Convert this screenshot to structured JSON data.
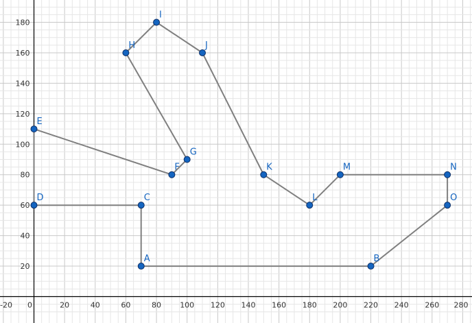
{
  "chart_data": {
    "type": "scatter",
    "xlim": [
      -20,
      285
    ],
    "ylim": [
      5,
      190
    ],
    "x_ticks": [
      -20,
      0,
      20,
      40,
      60,
      80,
      100,
      120,
      140,
      160,
      180,
      200,
      220,
      240,
      260,
      280
    ],
    "y_ticks": [
      20,
      40,
      60,
      80,
      100,
      120,
      140,
      160,
      180
    ],
    "grid": true,
    "line_color": "#7f7f7f",
    "point_color": "#1565c0",
    "points": [
      {
        "label": "A",
        "x": 70,
        "y": 20
      },
      {
        "label": "B",
        "x": 220,
        "y": 20
      },
      {
        "label": "C",
        "x": 70,
        "y": 60
      },
      {
        "label": "D",
        "x": 0,
        "y": 60
      },
      {
        "label": "E",
        "x": 0,
        "y": 110
      },
      {
        "label": "F",
        "x": 90,
        "y": 80
      },
      {
        "label": "G",
        "x": 100,
        "y": 90
      },
      {
        "label": "H",
        "x": 60,
        "y": 160
      },
      {
        "label": "I",
        "x": 80,
        "y": 180
      },
      {
        "label": "J",
        "x": 110,
        "y": 160
      },
      {
        "label": "K",
        "x": 150,
        "y": 80
      },
      {
        "label": "L",
        "x": 180,
        "y": 60
      },
      {
        "label": "M",
        "x": 200,
        "y": 80
      },
      {
        "label": "N",
        "x": 270,
        "y": 80
      },
      {
        "label": "O",
        "x": 270,
        "y": 60
      }
    ],
    "path_order": [
      "A",
      "B",
      "O",
      "N",
      "M",
      "L",
      "K",
      "J",
      "I",
      "H",
      "G",
      "F",
      "E",
      "D",
      "C",
      "A"
    ]
  }
}
